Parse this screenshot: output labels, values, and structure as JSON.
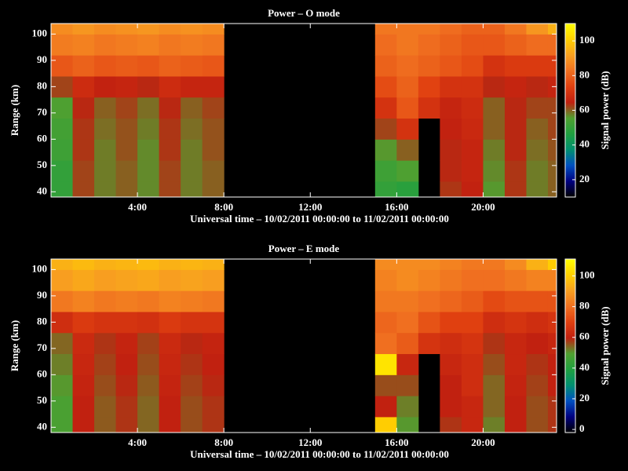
{
  "chart_data": [
    {
      "type": "heatmap",
      "title": "Power – O mode",
      "xlabel": "Universal time – 10/02/2011 00:00:00 to 11/02/2011 00:00:00",
      "ylabel": "Range (km)",
      "colorbar_label": "Signal power (dB)",
      "x": [
        0.5,
        1.5,
        2.5,
        3.5,
        4.5,
        5.5,
        6.5,
        7.5,
        8.5,
        9.5,
        10.5,
        11.5,
        12.5,
        13.5,
        14.5,
        15.5,
        16.5,
        17.5,
        18.5,
        19.5,
        20.5,
        21.5,
        22.5,
        23.5
      ],
      "y": [
        40,
        48,
        56,
        64,
        72,
        80,
        88,
        96,
        104
      ],
      "z": [
        [
          50,
          62,
          58,
          60,
          57,
          62,
          58,
          60,
          null,
          null,
          null,
          null,
          null,
          null,
          null,
          50,
          48,
          null,
          63,
          65,
          56,
          63,
          58,
          60
        ],
        [
          50,
          62,
          58,
          60,
          57,
          62,
          58,
          60,
          null,
          null,
          null,
          null,
          null,
          null,
          null,
          52,
          55,
          null,
          64,
          66,
          57,
          63,
          58,
          60
        ],
        [
          52,
          63,
          58,
          61,
          57,
          63,
          58,
          61,
          null,
          null,
          null,
          null,
          null,
          null,
          null,
          56,
          60,
          null,
          64,
          66,
          58,
          64,
          59,
          61
        ],
        [
          53,
          63,
          59,
          61,
          58,
          63,
          59,
          61,
          null,
          null,
          null,
          null,
          null,
          null,
          null,
          62,
          70,
          null,
          65,
          67,
          60,
          64,
          60,
          62
        ],
        [
          55,
          64,
          60,
          62,
          59,
          64,
          60,
          62,
          null,
          null,
          null,
          null,
          null,
          null,
          null,
          70,
          78,
          70,
          66,
          68,
          60,
          64,
          62,
          62
        ],
        [
          62,
          68,
          65,
          66,
          64,
          68,
          66,
          66,
          null,
          null,
          null,
          null,
          null,
          null,
          null,
          76,
          80,
          74,
          70,
          70,
          64,
          66,
          64,
          66
        ],
        [
          78,
          80,
          78,
          79,
          78,
          80,
          79,
          78,
          null,
          null,
          null,
          null,
          null,
          null,
          null,
          80,
          82,
          80,
          78,
          76,
          70,
          72,
          72,
          72
        ],
        [
          85,
          86,
          84,
          85,
          86,
          84,
          85,
          84,
          null,
          null,
          null,
          null,
          null,
          null,
          null,
          82,
          84,
          82,
          80,
          78,
          78,
          80,
          82,
          82
        ],
        [
          88,
          90,
          88,
          89,
          90,
          88,
          89,
          88,
          null,
          null,
          null,
          null,
          null,
          null,
          null,
          84,
          84,
          84,
          82,
          80,
          80,
          84,
          90,
          95
        ]
      ],
      "xlim": [
        0,
        23.4
      ],
      "ylim": [
        38,
        104
      ],
      "xticks": [
        {
          "value": 4,
          "label": "4:00"
        },
        {
          "value": 8,
          "label": "8:00"
        },
        {
          "value": 12,
          "label": "12:00"
        },
        {
          "value": 16,
          "label": "16:00"
        },
        {
          "value": 20,
          "label": "20:00"
        }
      ],
      "yticks": [
        40,
        50,
        60,
        70,
        80,
        90,
        100
      ],
      "clim": [
        10,
        110
      ],
      "cticks": [
        20,
        40,
        60,
        80,
        100
      ],
      "colormap": [
        "#000000",
        "#000080",
        "#0050c0",
        "#009070",
        "#20a040",
        "#50a030",
        "#c02010",
        "#e04010",
        "#f07020",
        "#f8a020",
        "#ffd000",
        "#ffff00"
      ]
    },
    {
      "type": "heatmap",
      "title": "Power – E mode",
      "xlabel": "Universal time – 10/02/2011 00:00:00 to 11/02/2011 00:00:00",
      "ylabel": "Range (km)",
      "colorbar_label": "Signal power (dB)",
      "x": [
        0.5,
        1.5,
        2.5,
        3.5,
        4.5,
        5.5,
        6.5,
        7.5,
        8.5,
        9.5,
        10.5,
        11.5,
        12.5,
        13.5,
        14.5,
        15.5,
        16.5,
        17.5,
        18.5,
        19.5,
        20.5,
        21.5,
        22.5,
        23.5
      ],
      "y": [
        40,
        48,
        56,
        64,
        72,
        80,
        88,
        96,
        104
      ],
      "z": [
        [
          48,
          60,
          55,
          58,
          54,
          60,
          56,
          58,
          null,
          null,
          null,
          null,
          null,
          null,
          null,
          100,
          50,
          null,
          58,
          62,
          52,
          60,
          56,
          58
        ],
        [
          48,
          60,
          55,
          58,
          54,
          60,
          56,
          58,
          null,
          null,
          null,
          null,
          null,
          null,
          null,
          60,
          52,
          null,
          60,
          62,
          54,
          60,
          56,
          58
        ],
        [
          50,
          61,
          56,
          59,
          55,
          61,
          57,
          59,
          null,
          null,
          null,
          null,
          null,
          null,
          null,
          56,
          56,
          null,
          60,
          64,
          54,
          61,
          57,
          60
        ],
        [
          52,
          62,
          57,
          60,
          56,
          62,
          58,
          60,
          null,
          null,
          null,
          null,
          null,
          null,
          null,
          105,
          62,
          null,
          62,
          64,
          56,
          62,
          58,
          60
        ],
        [
          54,
          63,
          58,
          61,
          57,
          63,
          59,
          61,
          null,
          null,
          null,
          null,
          null,
          null,
          null,
          80,
          76,
          66,
          64,
          66,
          58,
          62,
          60,
          62
        ],
        [
          64,
          68,
          66,
          66,
          65,
          68,
          66,
          66,
          null,
          null,
          null,
          null,
          null,
          null,
          null,
          78,
          80,
          74,
          70,
          70,
          64,
          66,
          64,
          66
        ],
        [
          82,
          84,
          82,
          83,
          82,
          84,
          83,
          82,
          null,
          null,
          null,
          null,
          null,
          null,
          null,
          82,
          82,
          80,
          78,
          76,
          72,
          74,
          74,
          74
        ],
        [
          90,
          92,
          90,
          91,
          92,
          90,
          91,
          90,
          null,
          null,
          null,
          null,
          null,
          null,
          null,
          84,
          86,
          84,
          82,
          80,
          80,
          82,
          84,
          84
        ],
        [
          94,
          96,
          94,
          95,
          96,
          94,
          95,
          94,
          null,
          null,
          null,
          null,
          null,
          null,
          null,
          86,
          86,
          86,
          84,
          82,
          82,
          86,
          94,
          100
        ]
      ],
      "xlim": [
        0,
        23.4
      ],
      "ylim": [
        38,
        104
      ],
      "xticks": [
        {
          "value": 4,
          "label": "4:00"
        },
        {
          "value": 8,
          "label": "8:00"
        },
        {
          "value": 12,
          "label": "12:00"
        },
        {
          "value": 16,
          "label": "16:00"
        },
        {
          "value": 20,
          "label": "20:00"
        }
      ],
      "yticks": [
        40,
        50,
        60,
        70,
        80,
        90,
        100
      ],
      "clim": [
        -2,
        111
      ],
      "cticks": [
        0,
        20,
        40,
        60,
        80,
        100
      ],
      "colormap": [
        "#000000",
        "#000080",
        "#0050c0",
        "#009070",
        "#20a040",
        "#50a030",
        "#c02010",
        "#e04010",
        "#f07020",
        "#f8a020",
        "#ffd000",
        "#ffff00"
      ]
    }
  ]
}
